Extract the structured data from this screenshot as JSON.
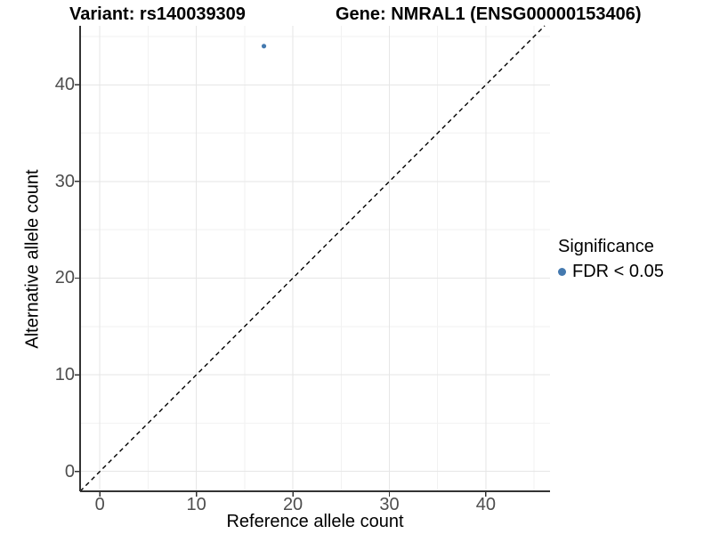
{
  "figure": {
    "title_variant": "Variant: rs140039309",
    "title_gene": "Gene: NMRAL1 (ENSG00000153406)"
  },
  "axes": {
    "x_label": "Reference allele count",
    "y_label": "Alternative allele count"
  },
  "legend": {
    "title": "Significance",
    "items": [
      {
        "label": "FDR < 0.05",
        "color": "#4479af",
        "marker": "circle"
      }
    ]
  },
  "chart_data": {
    "type": "scatter",
    "title": "Variant: rs140039309   Gene: NMRAL1 (ENSG00000153406)",
    "xlabel": "Reference allele count",
    "ylabel": "Alternative allele count",
    "points": [
      {
        "x": 17,
        "y": 44,
        "series": "FDR < 0.05",
        "color": "#4479af"
      }
    ],
    "x_ticks": [
      0,
      10,
      20,
      30,
      40
    ],
    "y_ticks": [
      0,
      10,
      20,
      30,
      40
    ],
    "x_minor_ticks": [
      5,
      15,
      25,
      35,
      45
    ],
    "y_minor_ticks": [
      5,
      15,
      25,
      35,
      45
    ],
    "xlim": [
      -2.05,
      46.65
    ],
    "ylim": [
      -2.05,
      46.1
    ],
    "reference_line": {
      "type": "identity",
      "equation": "y = x",
      "style": "dashed",
      "color": "#000000"
    },
    "grid": true,
    "legend_position": "right",
    "legend_title": "Significance",
    "legend_entries": [
      "FDR < 0.05"
    ],
    "colors": {
      "point": "#4479af",
      "axis_line": "#333333",
      "tick_label": "#4d4d4d",
      "grid_major": "#e6e6e6",
      "grid_minor": "#f2f2f2",
      "background": "#ffffff"
    }
  }
}
